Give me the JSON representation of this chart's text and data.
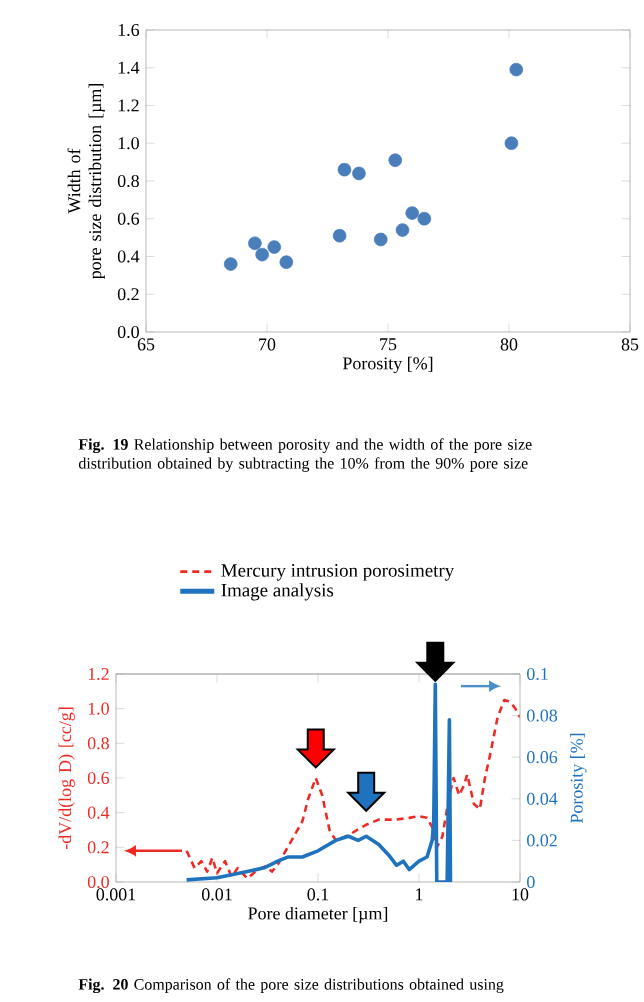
{
  "chart_data": [
    {
      "type": "scatter",
      "xlabel": "Porosity [%]",
      "ylabel": "Width of\npore size distribution [µm]",
      "xlim": [
        65,
        85
      ],
      "xticks": [
        65,
        70,
        75,
        80,
        85
      ],
      "ylim": [
        0,
        1.6
      ],
      "yticks": [
        {
          "value": 0,
          "label": "0.0"
        },
        {
          "value": 0.2,
          "label": "0.2"
        },
        {
          "value": 0.4,
          "label": "0.4"
        },
        {
          "value": 0.6,
          "label": "0.6"
        },
        {
          "value": 0.8,
          "label": "0.8"
        },
        {
          "value": 1.0,
          "label": "1.0"
        },
        {
          "value": 1.2,
          "label": "1.2"
        },
        {
          "value": 1.4,
          "label": "1.4"
        },
        {
          "value": 1.6,
          "label": "1.6"
        }
      ],
      "marker": "circle",
      "grid": false,
      "legend": false,
      "x": [
        68.5,
        69.5,
        69.8,
        70.3,
        70.8,
        73.0,
        73.2,
        73.8,
        74.7,
        75.3,
        75.6,
        76.0,
        76.5,
        80.1,
        80.3
      ],
      "series": [
        {
          "color": "#4a7ebb",
          "values": [
            0.36,
            0.47,
            0.41,
            0.45,
            0.37,
            0.51,
            0.86,
            0.84,
            0.49,
            0.91,
            0.54,
            0.63,
            0.6,
            1.0,
            1.39
          ]
        }
      ],
      "annotations": [
        "**Fig. 19** Relationship between porosity and the width of the pore size distribution obtained by subtracting the 10% from the 90% pore size"
      ]
    },
    {
      "type": "line",
      "xlabel": "Pore diameter [µm]",
      "ylabel": "-dV/d(log D) [cc/g]",
      "y2label": "Porosity [%]",
      "log": "x",
      "xlim": [
        0.001,
        10
      ],
      "xticks": [
        0.001,
        0.01,
        0.1,
        1,
        10
      ],
      "ylim": [
        0,
        1.2
      ],
      "yticks": [
        {
          "value": 0,
          "label": "0.0"
        },
        {
          "value": 0.2,
          "label": "0.2"
        },
        {
          "value": 0.4,
          "label": "0.4"
        },
        {
          "value": 0.6,
          "label": "0.6"
        },
        {
          "value": 0.8,
          "label": "0.8"
        },
        {
          "value": 1.0,
          "label": "1.0"
        },
        {
          "value": 1.2,
          "label": "1.2"
        }
      ],
      "y2lim": [
        0,
        0.1
      ],
      "y2ticks": [
        0,
        0.02,
        0.04,
        0.06,
        0.08,
        0.1
      ],
      "legend": "top",
      "grid": false,
      "series": [
        {
          "name": "Mercury intrusion porosimetry",
          "color": "#ee2a24",
          "line_style": "dashed",
          "x": [
            0.005,
            0.006,
            0.007,
            0.008,
            0.009,
            0.01,
            0.012,
            0.014,
            0.016,
            0.02,
            0.025,
            0.03,
            0.035,
            0.04,
            0.05,
            0.06,
            0.07,
            0.08,
            0.095,
            0.11,
            0.13,
            0.15,
            0.2,
            0.3,
            0.4,
            0.6,
            0.8,
            1.0,
            1.2,
            1.4,
            1.5,
            1.7,
            2.0,
            2.2,
            2.5,
            2.8,
            3.0,
            3.5,
            4.0,
            4.5,
            5,
            6,
            7,
            8,
            9,
            10
          ],
          "values": [
            0.18,
            0.08,
            0.12,
            0.06,
            0.14,
            0.05,
            0.12,
            0.03,
            0.08,
            0.02,
            0.07,
            0.09,
            0.06,
            0.1,
            0.2,
            0.28,
            0.35,
            0.48,
            0.6,
            0.5,
            0.3,
            0.24,
            0.27,
            0.33,
            0.36,
            0.36,
            0.37,
            0.38,
            0.37,
            0.3,
            0.2,
            0.26,
            0.5,
            0.6,
            0.5,
            0.56,
            0.62,
            0.45,
            0.42,
            0.6,
            0.72,
            0.95,
            1.05,
            1.04,
            1.0,
            0.95
          ]
        },
        {
          "name": "Image analysis",
          "color": "#1f72bd",
          "line_style": "solid",
          "axis": "y2",
          "x": [
            0.005,
            0.01,
            0.02,
            0.03,
            0.04,
            0.05,
            0.07,
            0.1,
            0.15,
            0.2,
            0.25,
            0.3,
            0.4,
            0.5,
            0.6,
            0.7,
            0.8,
            1.0,
            1.2,
            1.35,
            1.4,
            1.45,
            1.5,
            1.9,
            2.0,
            2.05
          ],
          "values": [
            0.001,
            0.002,
            0.005,
            0.007,
            0.01,
            0.012,
            0.012,
            0.015,
            0.02,
            0.022,
            0.02,
            0.022,
            0.018,
            0.013,
            0.008,
            0.01,
            0.006,
            0.01,
            0.012,
            0.02,
            0.03,
            0.095,
            0.0,
            0.0,
            0.078,
            0.0
          ]
        }
      ],
      "annotations": [
        "**Fig. 20** Comparison of the pore size distributions obtained using"
      ]
    }
  ]
}
